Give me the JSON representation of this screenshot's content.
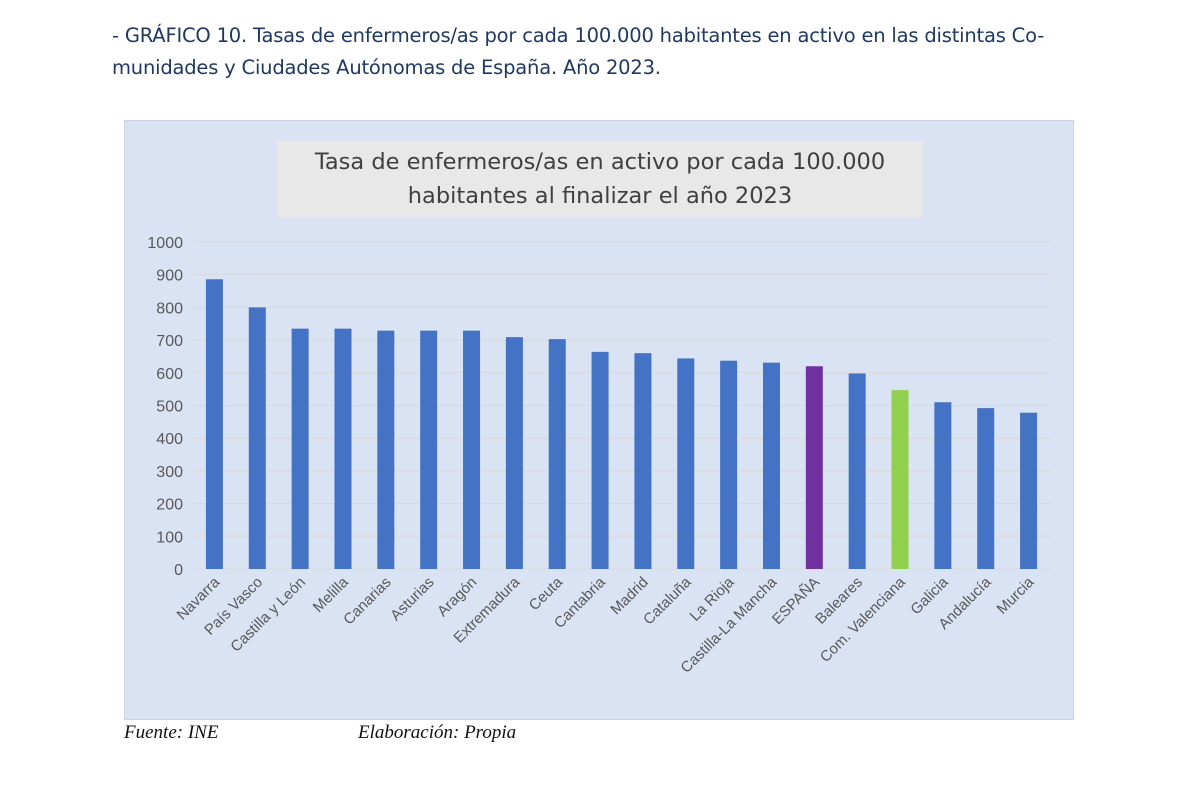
{
  "document": {
    "heading_line1": "- GRÁFICO 10. Tasas de enfermeros/as por cada 100.000 habitantes en activo en las distintas Co-",
    "heading_line2": "munidades y Ciudades Autónomas de España. Año 2023.",
    "source": "Fuente: INE",
    "credit": "Elaboración: Propia"
  },
  "colors": {
    "panel_bg": "#dae3f3",
    "bar_default": "#4472c4",
    "bar_spain": "#7030a0",
    "bar_valencia": "#92d050",
    "gridline": "#d9d9d9",
    "heading_text": "#1f3864"
  },
  "chart_data": {
    "type": "bar",
    "title_line1": "Tasa de enfermeros/as  en activo por cada 100.000",
    "title_line2": "habitantes al finalizar el año 2023",
    "xlabel": "",
    "ylabel": "",
    "ylim": [
      0,
      1000
    ],
    "yticks": [
      0,
      100,
      200,
      300,
      400,
      500,
      600,
      700,
      800,
      900,
      1000
    ],
    "grid": true,
    "legend": "none",
    "categories": [
      "Navarra",
      "País Vasco",
      "Castilla y León",
      "Melilla",
      "Canarias",
      "Asturias",
      "Aragón",
      "Extremadura",
      "Ceuta",
      "Cantabria",
      "Madrid",
      "Cataluña",
      "La Rioja",
      "Castilla-La Mancha",
      "ESPAÑA",
      "Baleares",
      "Com. Valenciana",
      "Galicia",
      "Andalucía",
      "Murcia"
    ],
    "values": [
      886,
      800,
      735,
      735,
      729,
      729,
      729,
      709,
      703,
      664,
      660,
      644,
      637,
      631,
      620,
      598,
      547,
      510,
      492,
      478
    ],
    "highlight": {
      "ESPAÑA": "#7030a0",
      "Com. Valenciana": "#92d050"
    }
  }
}
